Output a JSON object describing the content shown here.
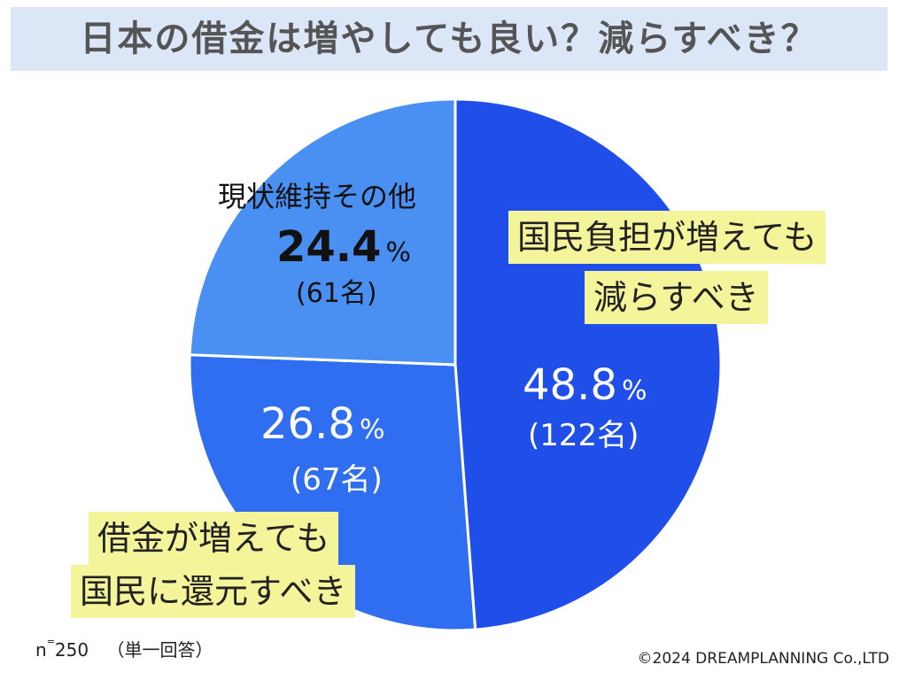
{
  "title": "日本の借金は増やしても良い？減らすべき？",
  "chart_data": {
    "type": "pie",
    "title": "日本の借金は増やしても良い？減らすべき？",
    "slices": [
      {
        "label_line1": "国民負担が増えても",
        "label_line2": "減らすべき",
        "percent": 48.8,
        "percent_text": "48.8",
        "count_text": "(122名)",
        "color": "#1f4fe8"
      },
      {
        "label_line1": "借金が増えても",
        "label_line2": "国民に還元すべき",
        "percent": 26.8,
        "percent_text": "26.8",
        "count_text": "(67名)",
        "color": "#2f6ef0"
      },
      {
        "label_line1": "現状維持その他",
        "label_line2": "",
        "percent": 24.4,
        "percent_text": "24.4",
        "count_text": "(61名)",
        "color": "#4a90f2"
      }
    ],
    "percent_sign": "%"
  },
  "footer": {
    "n_label": "n",
    "n_equals": "=",
    "n_value": "250",
    "answer_type": "（単一回答）",
    "copyright": "©2024 DREAMPLANNING Co.,LTD"
  }
}
